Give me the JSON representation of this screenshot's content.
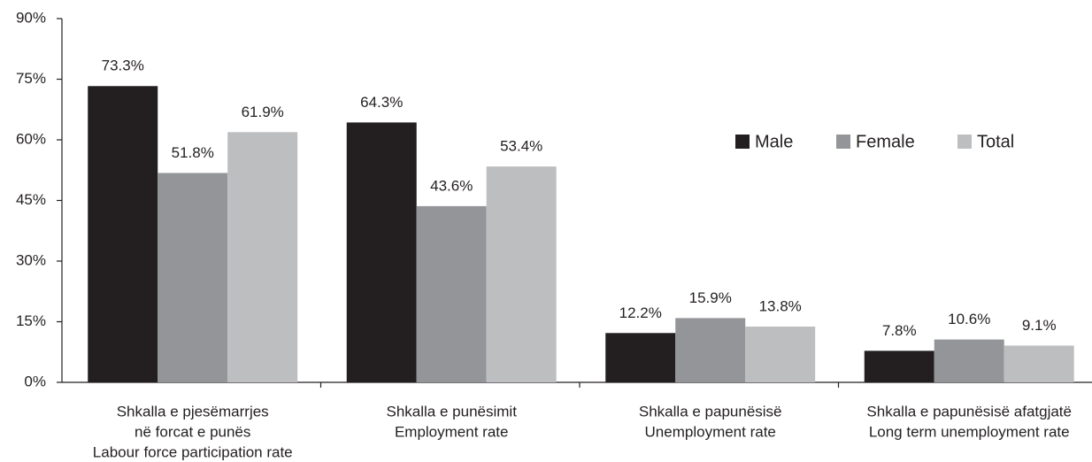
{
  "chart_data": {
    "type": "bar",
    "categories": [
      [
        "Shkalla e pjesëmarrjes",
        "në forcat e punës",
        "Labour force participation rate"
      ],
      [
        "Shkalla e punësimit",
        "Employment rate"
      ],
      [
        "Shkalla e papunësisë",
        "Unemployment rate"
      ],
      [
        "Shkalla e papunësisë afatgjatë",
        "Long term unemployment rate"
      ]
    ],
    "series": [
      {
        "name": "Male",
        "color": "#231f20",
        "values": [
          73.3,
          64.3,
          12.2,
          7.8
        ],
        "value_labels": [
          "73.3%",
          "64.3%",
          "12.2%",
          "7.8%"
        ]
      },
      {
        "name": "Female",
        "color": "#939598",
        "values": [
          51.8,
          43.6,
          15.9,
          10.6
        ],
        "value_labels": [
          "51.8%",
          "43.6%",
          "15.9%",
          "10.6%"
        ]
      },
      {
        "name": "Total",
        "color": "#bcbec0",
        "values": [
          61.9,
          53.4,
          13.8,
          9.1
        ],
        "value_labels": [
          "61.9%",
          "53.4%",
          "13.8%",
          "9.1%"
        ]
      }
    ],
    "ylim": [
      0,
      90
    ],
    "yticks": [
      {
        "value": 0,
        "label": "0%"
      },
      {
        "value": 15,
        "label": "15%"
      },
      {
        "value": 30,
        "label": "30%"
      },
      {
        "value": 45,
        "label": "45%"
      },
      {
        "value": 60,
        "label": "60%"
      },
      {
        "value": 75,
        "label": "75%"
      },
      {
        "value": 90,
        "label": "90%"
      }
    ],
    "legend": "upper right"
  }
}
